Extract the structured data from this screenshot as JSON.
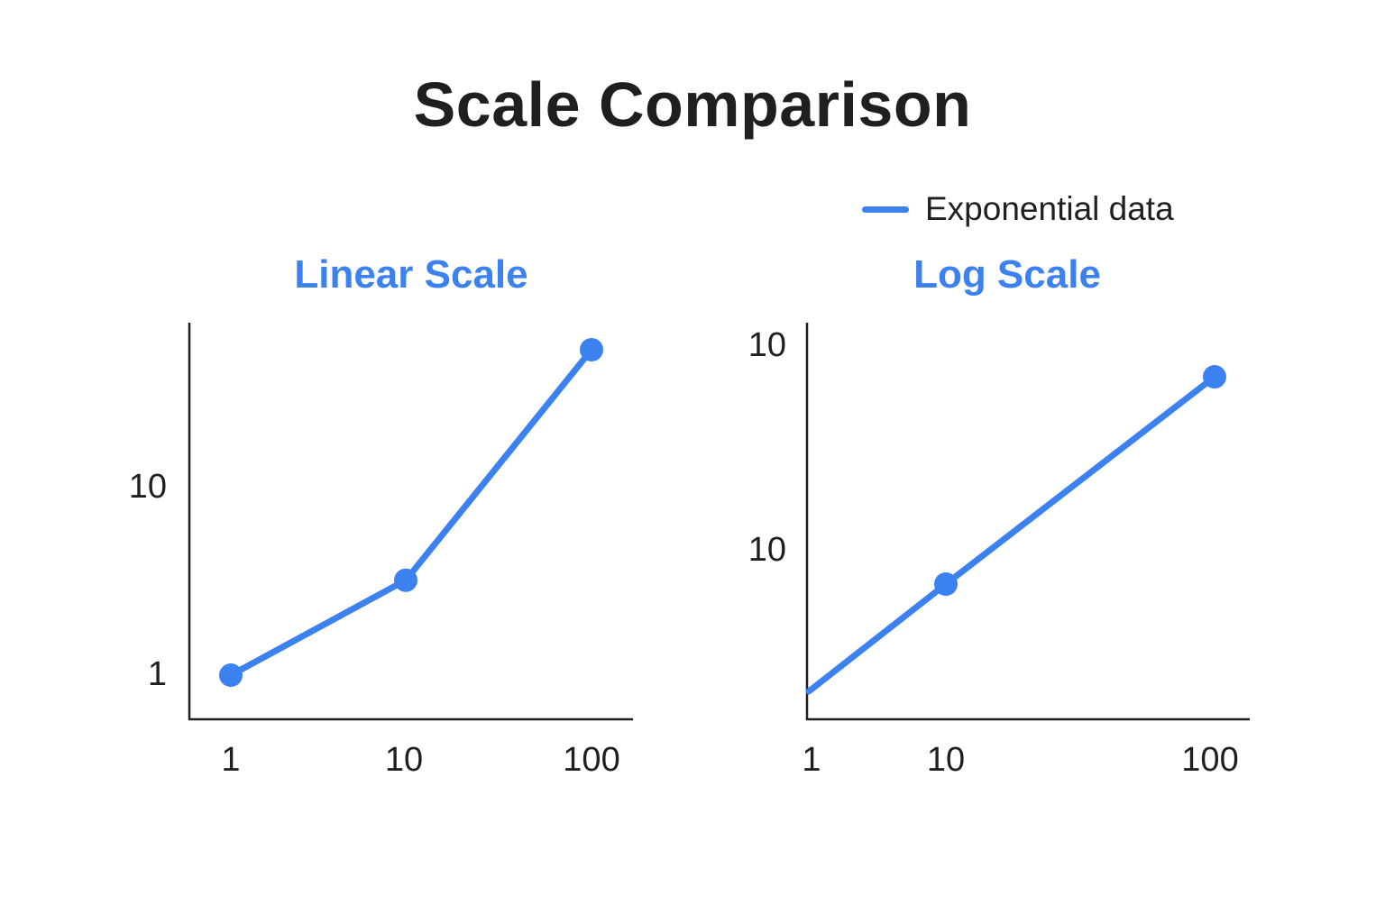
{
  "title": "Scale Comparison",
  "legend": {
    "label": "Exponential data",
    "color": "#3b82f0"
  },
  "chart_data": [
    {
      "type": "line",
      "title": "Linear Scale",
      "x_tick_labels": [
        "1",
        "10",
        "100"
      ],
      "y_tick_labels": [
        "1",
        "10"
      ],
      "series": [
        {
          "name": "Exponential data",
          "x": [
            1,
            10,
            100
          ],
          "y": [
            1,
            8,
            25
          ]
        }
      ],
      "grid": false,
      "color": "#3b82f0"
    },
    {
      "type": "line",
      "title": "Log Scale",
      "x_tick_labels": [
        "1",
        "10",
        "100"
      ],
      "y_tick_labels": [
        "10",
        "10"
      ],
      "series": [
        {
          "name": "Exponential data",
          "x": [
            1,
            10,
            100
          ],
          "y": [
            1,
            10,
            100
          ]
        }
      ],
      "grid": false,
      "color": "#3b82f0"
    }
  ]
}
